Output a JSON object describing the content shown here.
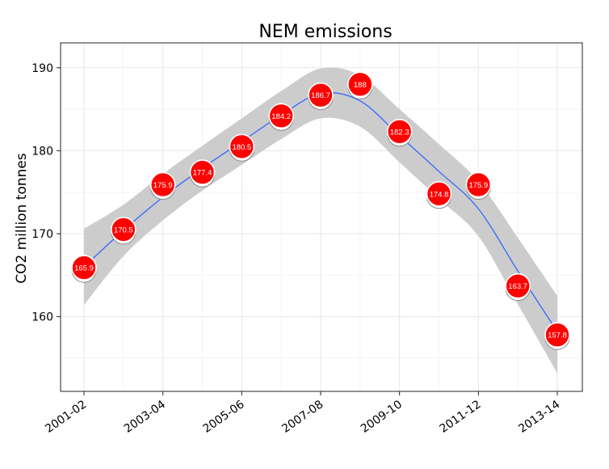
{
  "chart_data": {
    "type": "scatter",
    "title": "NEM emissions",
    "xlabel": "",
    "ylabel": "CO2 million tonnes",
    "categories": [
      "2001-02",
      "2002-03",
      "2003-04",
      "2004-05",
      "2005-06",
      "2006-07",
      "2007-08",
      "2008-09",
      "2009-10",
      "2010-11",
      "2011-12",
      "2012-13",
      "2013-14"
    ],
    "x_tick_labels": [
      "2001-02",
      "2003-04",
      "2005-06",
      "2007-08",
      "2009-10",
      "2011-12",
      "2013-14"
    ],
    "values": [
      165.9,
      170.5,
      175.9,
      177.4,
      180.5,
      184.2,
      186.7,
      188,
      182.3,
      174.8,
      175.9,
      163.7,
      157.8
    ],
    "point_labels": [
      "165.9",
      "170.5",
      "175.9",
      "177.4",
      "180.5",
      "184.2",
      "186.7",
      "188",
      "182.3",
      "174.8",
      "175.9",
      "163.7",
      "157.8"
    ],
    "ylim": [
      151,
      193
    ],
    "y_ticks": [
      160,
      170,
      180,
      190
    ],
    "smooth": {
      "values": [
        166,
        170.4,
        174.4,
        177.9,
        181.1,
        184.3,
        186.9,
        186,
        181.8,
        177.5,
        173,
        165.5,
        158.2
      ],
      "ci_upper": [
        170.6,
        173.5,
        177.2,
        180.6,
        183.9,
        187.2,
        189.9,
        189.1,
        185,
        180.8,
        176.3,
        169.5,
        162.5
      ],
      "ci_lower": [
        161.4,
        167.3,
        171.6,
        175.2,
        178.3,
        181.4,
        183.9,
        182.9,
        178.6,
        174.2,
        169.7,
        161.5,
        153.2
      ]
    },
    "grid": true,
    "colors": {
      "point": "#ff0000",
      "line": "#3366ff",
      "ribbon": "#cccccc",
      "panel_border": "#222222",
      "grid_major": "#e6e6e6",
      "grid_minor": "#f3f3f3"
    }
  }
}
